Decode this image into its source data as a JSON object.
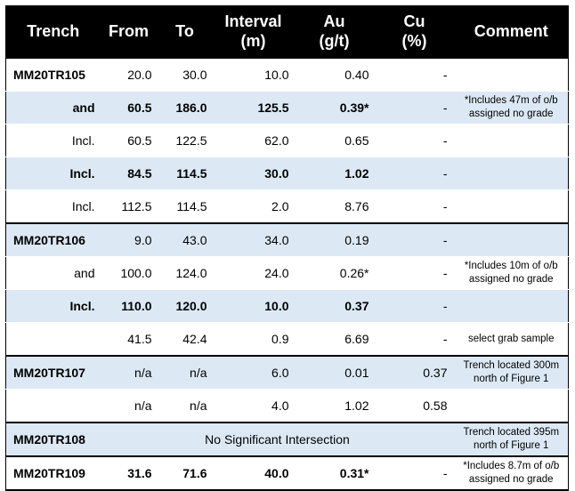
{
  "headers": {
    "trench": "Trench",
    "from": "From",
    "to": "To",
    "interval_l1": "Interval",
    "interval_l2": "(m)",
    "au_l1": "Au",
    "au_l2": "(g/t)",
    "cu_l1": "Cu",
    "cu_l2": "(%)",
    "comment": "Comment"
  },
  "rows": [
    {
      "trench": "MM20TR105",
      "from": "20.0",
      "to": "30.0",
      "interval": "10.0",
      "au": "0.40",
      "cu": "-",
      "comment": ""
    },
    {
      "trench": "and",
      "from": "60.5",
      "to": "186.0",
      "interval": "125.5",
      "au": "0.39*",
      "cu": "-",
      "comment": "*Includes 47m of o/b assigned no grade"
    },
    {
      "trench": "Incl.",
      "from": "60.5",
      "to": "122.5",
      "interval": "62.0",
      "au": "0.65",
      "cu": "-",
      "comment": ""
    },
    {
      "trench": "Incl.",
      "from": "84.5",
      "to": "114.5",
      "interval": "30.0",
      "au": "1.02",
      "cu": "-",
      "comment": ""
    },
    {
      "trench": "Incl.",
      "from": "112.5",
      "to": "114.5",
      "interval": "2.0",
      "au": "8.76",
      "cu": "-",
      "comment": ""
    },
    {
      "trench": "MM20TR106",
      "from": "9.0",
      "to": "43.0",
      "interval": "34.0",
      "au": "0.19",
      "cu": "-",
      "comment": ""
    },
    {
      "trench": "and",
      "from": "100.0",
      "to": "124.0",
      "interval": "24.0",
      "au": "0.26*",
      "cu": "-",
      "comment": "*Includes 10m of o/b assigned no grade"
    },
    {
      "trench": "Incl.",
      "from": "110.0",
      "to": "120.0",
      "interval": "10.0",
      "au": "0.37",
      "cu": "-",
      "comment": ""
    },
    {
      "trench": "",
      "from": "41.5",
      "to": "42.4",
      "interval": "0.9",
      "au": "6.69",
      "cu": "-",
      "comment": "select grab sample"
    },
    {
      "trench": "MM20TR107",
      "from": "n/a",
      "to": "n/a",
      "interval": "6.0",
      "au": "0.01",
      "cu": "0.37",
      "comment": "Trench located 300m north of Figure 1"
    },
    {
      "trench": "",
      "from": "n/a",
      "to": "n/a",
      "interval": "4.0",
      "au": "1.02",
      "cu": "0.58",
      "comment": ""
    },
    {
      "trench": "MM20TR108",
      "span_text": "No Significant Intersection",
      "comment": "Trench located 395m north of Figure 1"
    },
    {
      "trench": "MM20TR109",
      "from": "31.6",
      "to": "71.6",
      "interval": "40.0",
      "au": "0.31*",
      "cu": "-",
      "comment": "*Includes 8.7m of o/b assigned no grade"
    }
  ]
}
